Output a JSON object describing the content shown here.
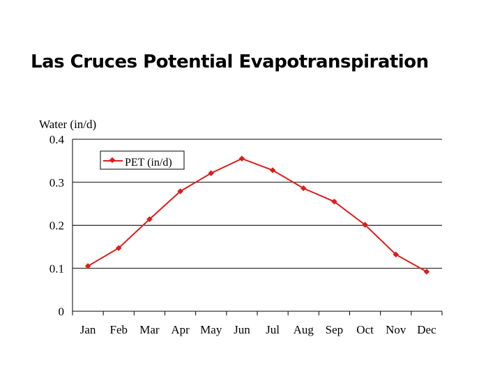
{
  "title": "Las Cruces Potential Evapotranspiration",
  "chart_data": {
    "type": "line",
    "title": "",
    "xlabel": "",
    "ylabel": "Water (in/d)",
    "categories": [
      "Jan",
      "Feb",
      "Mar",
      "Apr",
      "May",
      "Jun",
      "Jul",
      "Aug",
      "Sep",
      "Oct",
      "Nov",
      "Dec"
    ],
    "series": [
      {
        "name": "PET (in/d)",
        "color": "#dd1c1c",
        "values": [
          0.105,
          0.147,
          0.214,
          0.279,
          0.321,
          0.355,
          0.328,
          0.286,
          0.255,
          0.201,
          0.132,
          0.092
        ]
      }
    ],
    "ylim": [
      0,
      0.4
    ],
    "yticks": [
      "0",
      "0.1",
      "0.2",
      "0.3",
      "0.4"
    ],
    "grid": "horizontal",
    "legend": "top-left"
  }
}
